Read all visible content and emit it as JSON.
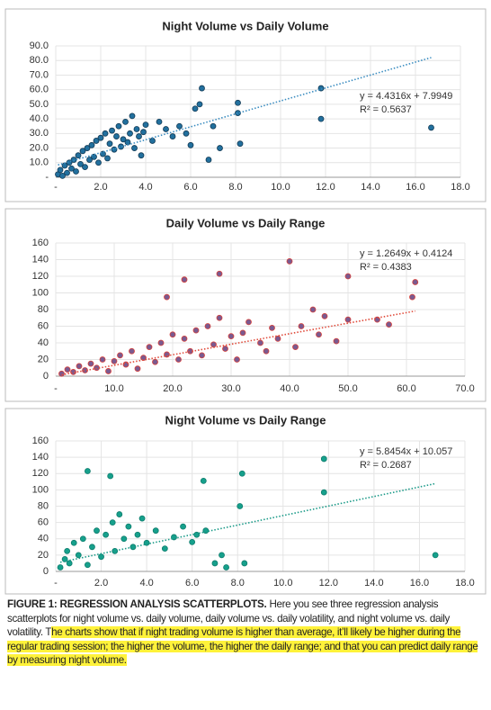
{
  "chart_data": [
    {
      "type": "scatter",
      "title": "Night Volume vs Daily Volume",
      "color": "#22709e",
      "edge": "#123a55",
      "trend_color": "#3a8cc0",
      "x": [
        0.1,
        0.2,
        0.3,
        0.4,
        0.5,
        0.6,
        0.7,
        0.8,
        0.9,
        1.0,
        1.1,
        1.2,
        1.3,
        1.4,
        1.5,
        1.6,
        1.7,
        1.8,
        1.9,
        2.0,
        2.1,
        2.2,
        2.3,
        2.4,
        2.5,
        2.6,
        2.7,
        2.8,
        2.9,
        3.0,
        3.1,
        3.2,
        3.3,
        3.4,
        3.5,
        3.6,
        3.7,
        3.8,
        3.9,
        4.0,
        4.3,
        4.6,
        4.9,
        5.2,
        5.5,
        5.8,
        6.0,
        6.2,
        6.4,
        6.5,
        6.8,
        7.0,
        7.3,
        8.1,
        8.1,
        8.2,
        11.8,
        11.8,
        16.7
      ],
      "values": [
        2,
        5,
        1,
        8,
        3,
        10,
        6,
        12,
        4,
        15,
        9,
        18,
        7,
        20,
        12,
        22,
        14,
        25,
        10,
        27,
        16,
        30,
        13,
        23,
        32,
        19,
        28,
        35,
        21,
        26,
        38,
        24,
        30,
        42,
        20,
        33,
        28,
        15,
        31,
        36,
        25,
        38,
        33,
        28,
        35,
        30,
        22,
        47,
        50,
        61,
        12,
        35,
        20,
        44,
        51,
        23,
        61,
        40,
        34
      ],
      "xlim": [
        0,
        18
      ],
      "xticks": [
        {
          "value": 0,
          "label": "-"
        },
        {
          "value": 2,
          "label": "2.0"
        },
        {
          "value": 4,
          "label": "4.0"
        },
        {
          "value": 6,
          "label": "6.0"
        },
        {
          "value": 8,
          "label": "8.0"
        },
        {
          "value": 10,
          "label": "10.0"
        },
        {
          "value": 12,
          "label": "12.0"
        },
        {
          "value": 14,
          "label": "14.0"
        },
        {
          "value": 16,
          "label": "16.0"
        },
        {
          "value": 18,
          "label": "18.0"
        }
      ],
      "ylim": [
        0,
        90
      ],
      "yticks": [
        {
          "value": 0,
          "label": "-"
        },
        {
          "value": 10,
          "label": "10.0"
        },
        {
          "value": 20,
          "label": "20.0"
        },
        {
          "value": 30,
          "label": "30.0"
        },
        {
          "value": 40,
          "label": "40.0"
        },
        {
          "value": 50,
          "label": "50.0"
        },
        {
          "value": 60,
          "label": "60.0"
        },
        {
          "value": 70,
          "label": "70.0"
        },
        {
          "value": 80,
          "label": "80.0"
        },
        {
          "value": 90,
          "label": "90.0"
        }
      ],
      "grid": true,
      "trendline": {
        "slope": 4.4316,
        "intercept": 7.9949
      },
      "equation": "y = 4.4316x + 7.9949",
      "r2": "R² = 0.5637"
    },
    {
      "type": "scatter",
      "title": "Daily Volume vs Daily Range",
      "color": "#7a5a90",
      "edge": "#d8403a",
      "trend_color": "#e04a3a",
      "x": [
        1,
        2,
        3,
        4,
        5,
        6,
        7,
        8,
        9,
        10,
        11,
        12,
        13,
        14,
        15,
        16,
        17,
        18,
        19,
        20,
        21,
        22,
        22,
        23,
        24,
        25,
        26,
        27,
        28,
        29,
        30,
        31,
        32,
        33,
        35,
        36,
        37,
        38,
        40,
        41,
        42,
        44,
        45,
        46,
        48,
        50,
        50,
        28,
        19,
        55,
        57,
        61,
        61.5
      ],
      "values": [
        3,
        8,
        5,
        12,
        7,
        15,
        10,
        20,
        6,
        18,
        25,
        14,
        30,
        9,
        22,
        35,
        17,
        40,
        26,
        50,
        20,
        45,
        116,
        30,
        55,
        25,
        60,
        38,
        70,
        33,
        48,
        20,
        52,
        65,
        40,
        30,
        58,
        45,
        138,
        35,
        60,
        80,
        50,
        72,
        42,
        68,
        120,
        123,
        95,
        68,
        62,
        95,
        113
      ],
      "xlim": [
        0,
        70
      ],
      "xticks": [
        {
          "value": 0,
          "label": "-"
        },
        {
          "value": 10,
          "label": "10.0"
        },
        {
          "value": 20,
          "label": "20.0"
        },
        {
          "value": 30,
          "label": "30.0"
        },
        {
          "value": 40,
          "label": "40.0"
        },
        {
          "value": 50,
          "label": "50.0"
        },
        {
          "value": 60,
          "label": "60.0"
        },
        {
          "value": 70,
          "label": "70.0"
        }
      ],
      "ylim": [
        0,
        160
      ],
      "yticks": [
        0,
        20,
        40,
        60,
        80,
        100,
        120,
        140,
        160
      ],
      "grid": true,
      "trendline": {
        "slope": 1.2649,
        "intercept": 0.4124
      },
      "equation": "y = 1.2649x + 0.4124",
      "r2": "R² = 0.4383"
    },
    {
      "type": "scatter",
      "title": "Night Volume vs Daily Range",
      "color": "#16a08c",
      "edge": "#0f7d6d",
      "trend_color": "#1a9a88",
      "x": [
        0.2,
        0.4,
        0.5,
        0.6,
        0.8,
        1.0,
        1.2,
        1.4,
        1.4,
        1.6,
        1.8,
        2.0,
        2.2,
        2.4,
        2.5,
        2.6,
        2.8,
        3.0,
        3.2,
        3.4,
        3.6,
        3.8,
        4.0,
        4.4,
        4.8,
        5.2,
        5.6,
        6.0,
        6.2,
        6.5,
        6.6,
        7.0,
        7.3,
        7.5,
        8.1,
        8.2,
        8.3,
        11.8,
        11.8,
        16.7
      ],
      "values": [
        5,
        15,
        25,
        10,
        35,
        20,
        40,
        123,
        8,
        30,
        50,
        18,
        45,
        117,
        60,
        25,
        70,
        40,
        55,
        30,
        45,
        65,
        35,
        50,
        28,
        42,
        55,
        36,
        45,
        111,
        50,
        10,
        20,
        5,
        80,
        120,
        10,
        138,
        97,
        20
      ],
      "xlim": [
        0,
        18
      ],
      "xticks": [
        {
          "value": 0,
          "label": "-"
        },
        {
          "value": 2,
          "label": "2.0"
        },
        {
          "value": 4,
          "label": "4.0"
        },
        {
          "value": 6,
          "label": "6.0"
        },
        {
          "value": 8,
          "label": "8.0"
        },
        {
          "value": 10,
          "label": "10.0"
        },
        {
          "value": 12,
          "label": "12.0"
        },
        {
          "value": 14,
          "label": "14.0"
        },
        {
          "value": 16,
          "label": "16.0"
        },
        {
          "value": 18,
          "label": "18.0"
        }
      ],
      "ylim": [
        0,
        160
      ],
      "yticks": [
        0,
        20,
        40,
        60,
        80,
        100,
        120,
        140,
        160
      ],
      "grid": true,
      "trendline": {
        "slope": 5.8454,
        "intercept": 10.057
      },
      "equation": "y = 5.8454x + 10.057",
      "r2": "R² = 0.2687"
    }
  ],
  "caption": {
    "lead": "FIGURE 1: REGRESSION ANALYSIS SCATTERPLOTS.",
    "text": " Here you see three regression analysis scatterplots for night volume vs. daily volume, daily volume vs. daily volatility, and night volume vs. daily volatility. T",
    "highlight": "he charts show that if night trading volume is higher than average, it’ll likely be higher during the regular trading session; the higher the volume, the higher the daily range; and that you can predict daily range by measuring night volume."
  }
}
